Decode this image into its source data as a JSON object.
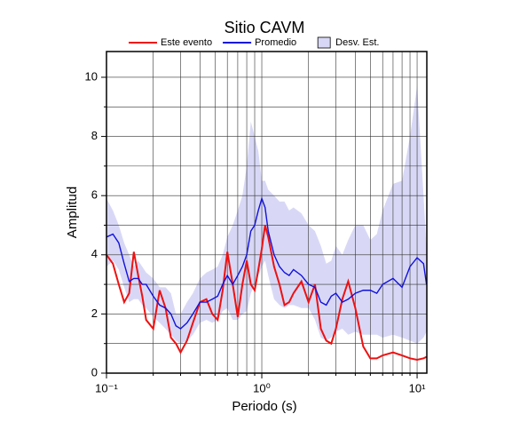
{
  "chart_data": {
    "type": "line",
    "title": "Sitio CAVM",
    "x_label": "Periodo (s)",
    "y_label": "Amplitud",
    "x_log": true,
    "grid": true,
    "legend": "top",
    "xlim": [
      0.1,
      11.55
    ],
    "ylim": [
      0,
      10.87
    ],
    "xticks": [
      {
        "value": 0.1,
        "label": "10⁻¹"
      },
      {
        "value": 1,
        "label": "10⁰"
      },
      {
        "value": 10,
        "label": "10¹"
      }
    ],
    "x_minor_ticks": [
      0.2,
      0.3,
      0.4,
      0.5,
      0.6,
      0.7,
      0.8,
      0.9,
      2,
      3,
      4,
      5,
      6,
      7,
      8,
      9
    ],
    "yticks": [
      0,
      2,
      4,
      6,
      8,
      10
    ],
    "y_minor_ticks": [
      1,
      3,
      5,
      7,
      9
    ],
    "x": [
      0.1,
      0.11,
      0.12,
      0.13,
      0.14,
      0.15,
      0.16,
      0.17,
      0.18,
      0.2,
      0.22,
      0.24,
      0.26,
      0.28,
      0.3,
      0.33,
      0.36,
      0.4,
      0.44,
      0.48,
      0.52,
      0.56,
      0.6,
      0.65,
      0.7,
      0.75,
      0.8,
      0.85,
      0.9,
      0.95,
      1.0,
      1.05,
      1.1,
      1.2,
      1.3,
      1.4,
      1.5,
      1.6,
      1.8,
      2.0,
      2.2,
      2.4,
      2.6,
      2.8,
      3.0,
      3.3,
      3.6,
      4.0,
      4.5,
      5,
      5.5,
      6,
      7,
      8,
      9,
      10,
      11,
      11.5
    ],
    "band": {
      "name": "Desv. Est.",
      "color": "#d8d8f6",
      "upper": [
        5.9,
        5.5,
        5.0,
        4.4,
        4.0,
        3.6,
        3.8,
        3.6,
        3.4,
        3.2,
        2.9,
        2.9,
        2.7,
        2.0,
        2.0,
        2.4,
        2.7,
        3.2,
        3.4,
        3.5,
        3.6,
        4.0,
        4.6,
        5.0,
        5.5,
        6.0,
        7.0,
        8.5,
        8.0,
        7.5,
        6.5,
        6.5,
        6.2,
        6.0,
        5.8,
        5.8,
        5.5,
        5.6,
        5.4,
        5.0,
        4.8,
        4.3,
        3.7,
        3.8,
        4.3,
        4.0,
        4.5,
        5.0,
        5.0,
        4.5,
        4.7,
        5.5,
        6.4,
        6.5,
        8.0,
        9.7,
        6.0,
        4.2
      ],
      "lower": [
        3.6,
        3.8,
        3.5,
        2.9,
        2.4,
        2.5,
        2.5,
        2.3,
        2.2,
        1.9,
        1.7,
        1.5,
        1.3,
        1.1,
        1.0,
        1.1,
        1.3,
        1.7,
        1.8,
        1.7,
        1.8,
        2.1,
        2.2,
        1.8,
        1.8,
        2.0,
        2.1,
        2.7,
        3.0,
        3.3,
        3.6,
        3.8,
        3.3,
        2.5,
        2.3,
        2.2,
        2.3,
        2.3,
        2.2,
        2.2,
        1.8,
        1.2,
        1.1,
        1.2,
        1.4,
        1.5,
        1.3,
        1.4,
        1.3,
        1.3,
        1.3,
        1.2,
        1.3,
        1.2,
        1.1,
        1.0,
        1.2,
        1.4
      ]
    },
    "series": [
      {
        "name": "Este evento",
        "color": "#ee1111",
        "values": [
          4.0,
          3.7,
          3.0,
          2.4,
          2.7,
          4.1,
          3.3,
          2.6,
          1.8,
          1.5,
          2.8,
          2.2,
          1.2,
          1.0,
          0.7,
          1.1,
          1.7,
          2.4,
          2.5,
          2.0,
          1.8,
          2.8,
          4.1,
          3.0,
          1.9,
          3.0,
          3.8,
          3.0,
          2.8,
          3.5,
          4.2,
          5.0,
          4.6,
          3.6,
          3.0,
          2.3,
          2.4,
          2.7,
          3.1,
          2.4,
          3.0,
          1.5,
          1.1,
          1.0,
          1.5,
          2.5,
          3.1,
          2.2,
          0.9,
          0.5,
          0.5,
          0.6,
          0.7,
          0.6,
          0.5,
          0.45,
          0.5,
          0.55
        ]
      },
      {
        "name": "Promedio",
        "color": "#1111dd",
        "values": [
          4.6,
          4.7,
          4.4,
          3.7,
          3.1,
          3.2,
          3.2,
          3.0,
          3.0,
          2.6,
          2.3,
          2.2,
          2.0,
          1.6,
          1.5,
          1.7,
          2.0,
          2.4,
          2.4,
          2.5,
          2.6,
          3.0,
          3.3,
          3.0,
          3.3,
          3.6,
          4.0,
          4.8,
          5.0,
          5.5,
          5.9,
          5.6,
          4.8,
          4.0,
          3.6,
          3.4,
          3.3,
          3.5,
          3.3,
          3.0,
          2.9,
          2.4,
          2.3,
          2.6,
          2.7,
          2.4,
          2.5,
          2.7,
          2.8,
          2.8,
          2.7,
          3.0,
          3.2,
          2.9,
          3.6,
          3.9,
          3.7,
          3.0
        ]
      }
    ]
  }
}
